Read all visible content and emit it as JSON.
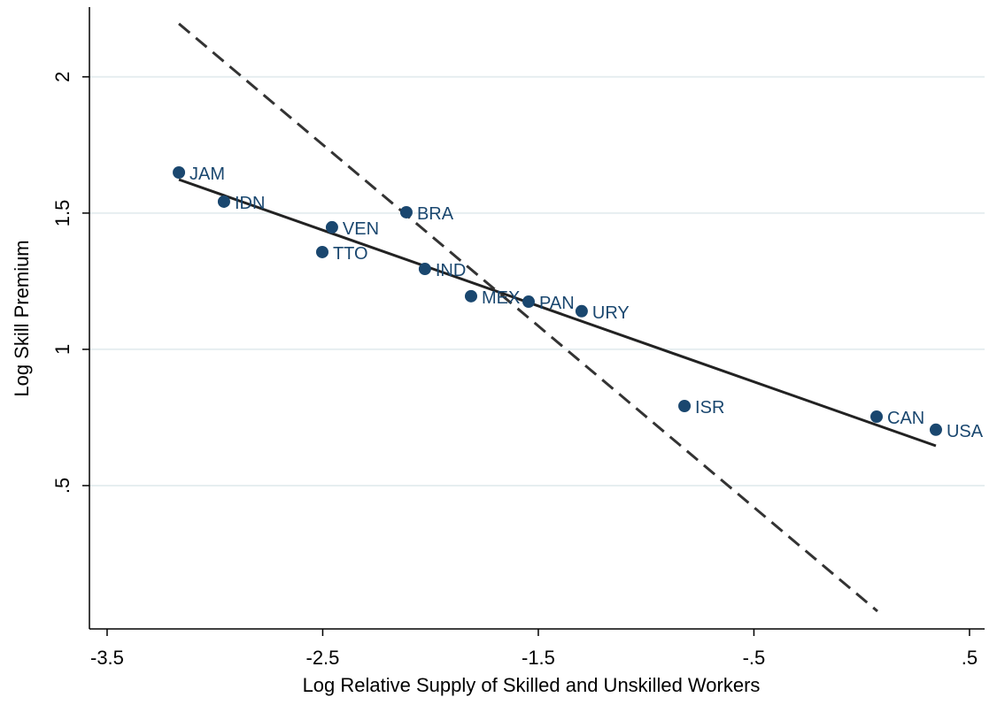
{
  "chart_data": {
    "type": "scatter",
    "xlabel": "Log Relative Supply of Skilled and Unskilled Workers",
    "ylabel": "Log Skill Premium",
    "xlim": [
      -3.582,
      0.57
    ],
    "ylim": [
      -0.026,
      2.256
    ],
    "xticks": [
      -3.5,
      -2.5,
      -1.5,
      {
        "value": -0.5,
        "label": "-.5"
      },
      {
        "value": 0.5,
        "label": ".5"
      }
    ],
    "yticks": [
      {
        "value": 0.5,
        "label": ".5"
      },
      1,
      1.5,
      2
    ],
    "grid": true,
    "points": {
      "color": "#1a476f",
      "labels": [
        "JAM",
        "IDN",
        "VEN",
        "TTO",
        "BRA",
        "IND",
        "MEX",
        "PAN",
        "URY",
        "ISR",
        "CAN",
        "USA"
      ],
      "x": [
        -3.167,
        -2.958,
        -2.457,
        -2.502,
        -2.112,
        -2.026,
        -1.812,
        -1.545,
        -1.299,
        -0.822,
        0.069,
        0.344
      ],
      "y": [
        1.649,
        1.542,
        1.448,
        1.357,
        1.503,
        1.295,
        1.195,
        1.175,
        1.14,
        0.792,
        0.753,
        0.705
      ]
    },
    "lines": [
      {
        "x": [
          -3.167,
          0.344
        ],
        "y": [
          1.623,
          0.646
        ],
        "color": "#222222",
        "dashed": false
      },
      {
        "x": [
          -3.167,
          0.073
        ],
        "y": [
          2.195,
          0.039
        ],
        "color": "#333333",
        "dashed": true
      }
    ]
  }
}
